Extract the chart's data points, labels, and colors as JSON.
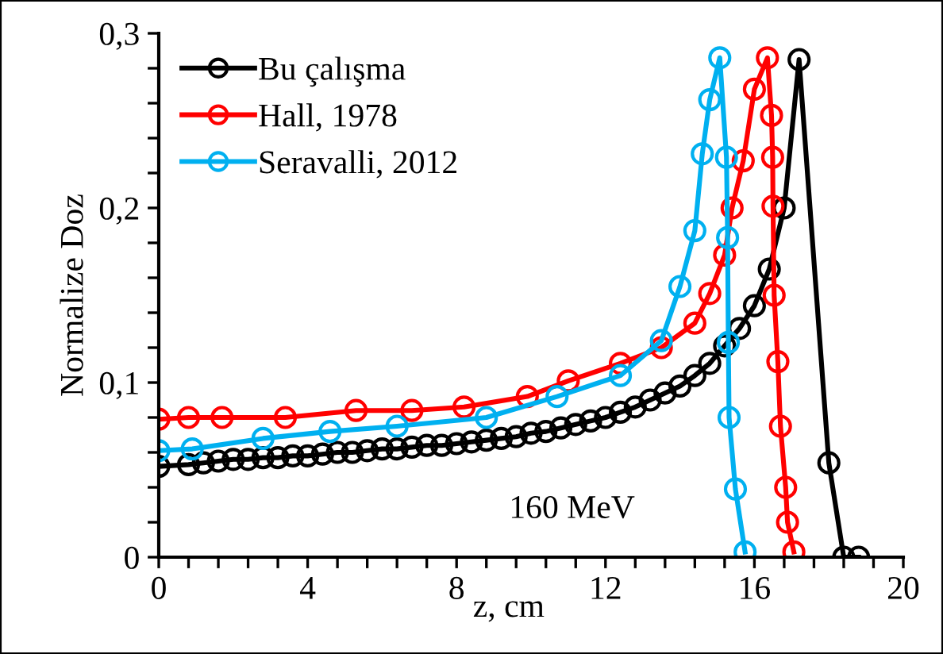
{
  "chart_data": {
    "type": "line",
    "xlabel": "z, cm",
    "ylabel": "Normalize Doz",
    "marker": "circle",
    "line_style": "solid",
    "legend": "top left",
    "grid": false,
    "annotations": [
      "160 MeV"
    ],
    "xlim": [
      0,
      20
    ],
    "ylim": [
      0,
      0.3
    ],
    "xticks": [
      0,
      {
        "value": 0.8,
        "label": null
      },
      {
        "value": 1.6,
        "label": null
      },
      {
        "value": 2.4,
        "label": null
      },
      {
        "value": 3.2,
        "label": null
      },
      4,
      {
        "value": 4.8,
        "label": null
      },
      {
        "value": 5.6,
        "label": null
      },
      {
        "value": 6.4,
        "label": null
      },
      {
        "value": 7.2,
        "label": null
      },
      8,
      {
        "value": 8.8,
        "label": null
      },
      {
        "value": 9.6,
        "label": null
      },
      {
        "value": 10.4,
        "label": null
      },
      {
        "value": 11.2,
        "label": null
      },
      12,
      {
        "value": 12.8,
        "label": null
      },
      {
        "value": 13.6,
        "label": null
      },
      {
        "value": 14.4,
        "label": null
      },
      {
        "value": 15.2,
        "label": null
      },
      16,
      {
        "value": 16.8,
        "label": null
      },
      {
        "value": 17.6,
        "label": null
      },
      {
        "value": 18.4,
        "label": null
      },
      {
        "value": 19.2,
        "label": null
      },
      20
    ],
    "yticks": [
      0,
      {
        "value": 0.02,
        "label": null
      },
      {
        "value": 0.04,
        "label": null
      },
      {
        "value": 0.06,
        "label": null
      },
      {
        "value": 0.08,
        "label": null
      },
      {
        "value": 0.1,
        "label": "0,1"
      },
      {
        "value": 0.12,
        "label": null
      },
      {
        "value": 0.14,
        "label": null
      },
      {
        "value": 0.16,
        "label": null
      },
      {
        "value": 0.18,
        "label": null
      },
      {
        "value": 0.2,
        "label": "0,2"
      },
      {
        "value": 0.22,
        "label": null
      },
      {
        "value": 0.24,
        "label": null
      },
      {
        "value": 0.26,
        "label": null
      },
      {
        "value": 0.28,
        "label": null
      },
      {
        "value": 0.3,
        "label": "0,3"
      }
    ],
    "series": [
      {
        "name": "Bu çalışma",
        "color": "#000000",
        "x": [
          0,
          0.8,
          1.2,
          1.6,
          2.0,
          2.4,
          2.8,
          3.2,
          3.6,
          4.0,
          4.4,
          4.8,
          5.2,
          5.6,
          6.0,
          6.4,
          6.8,
          7.2,
          7.6,
          8.0,
          8.4,
          8.8,
          9.2,
          9.6,
          10.0,
          10.4,
          10.8,
          11.2,
          11.6,
          12.0,
          12.4,
          12.8,
          13.2,
          13.6,
          14.0,
          14.4,
          14.8,
          15.2,
          15.6,
          16.0,
          16.4,
          16.8,
          17.2,
          18.0,
          18.4,
          18.8
        ],
        "values": [
          0.052,
          0.053,
          0.054,
          0.055,
          0.056,
          0.056,
          0.057,
          0.057,
          0.058,
          0.058,
          0.059,
          0.06,
          0.06,
          0.061,
          0.062,
          0.062,
          0.063,
          0.064,
          0.064,
          0.065,
          0.066,
          0.067,
          0.068,
          0.069,
          0.071,
          0.072,
          0.074,
          0.076,
          0.078,
          0.08,
          0.083,
          0.086,
          0.09,
          0.094,
          0.098,
          0.104,
          0.111,
          0.121,
          0.131,
          0.144,
          0.165,
          0.2,
          0.285,
          0.054,
          0.0,
          0.0
        ]
      },
      {
        "name": "Hall, 1978",
        "color": "#ff0000",
        "x": [
          0,
          0.8,
          1.7,
          3.4,
          5.3,
          6.8,
          8.2,
          9.9,
          11.0,
          12.4,
          13.5,
          14.4,
          14.8,
          15.2,
          15.4,
          15.7,
          16.0,
          16.35,
          16.46,
          16.49,
          16.5,
          16.53,
          16.63,
          16.7,
          16.84,
          16.89,
          17.06
        ],
        "values": [
          0.079,
          0.08,
          0.08,
          0.08,
          0.084,
          0.084,
          0.086,
          0.092,
          0.101,
          0.111,
          0.12,
          0.134,
          0.151,
          0.173,
          0.2,
          0.227,
          0.268,
          0.286,
          0.253,
          0.229,
          0.201,
          0.15,
          0.112,
          0.075,
          0.04,
          0.02,
          0.003
        ]
      },
      {
        "name": "Seravalli, 2012",
        "color": "#00b0f0",
        "x": [
          0,
          0.9,
          2.8,
          4.6,
          6.4,
          8.8,
          10.7,
          12.4,
          13.5,
          14.0,
          14.4,
          14.6,
          14.8,
          15.07,
          15.25,
          15.28,
          15.3,
          15.32,
          15.49,
          15.75
        ],
        "values": [
          0.061,
          0.062,
          0.068,
          0.072,
          0.075,
          0.08,
          0.092,
          0.104,
          0.124,
          0.155,
          0.187,
          0.231,
          0.262,
          0.286,
          0.229,
          0.183,
          0.123,
          0.08,
          0.039,
          0.003
        ]
      }
    ]
  }
}
